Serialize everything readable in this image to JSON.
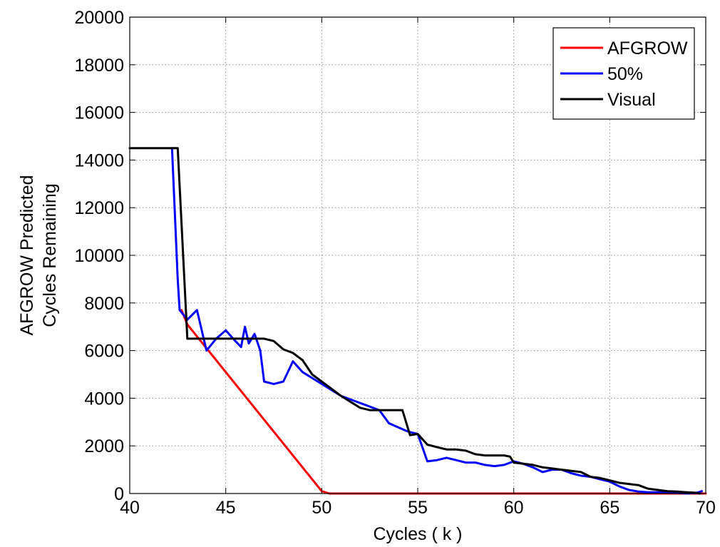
{
  "chart_data": {
    "type": "line",
    "title": "",
    "xlabel": "Cycles ( k )",
    "ylabel_lines": [
      "AFGROW Predicted",
      "Cycles Remaining"
    ],
    "xlim": [
      40,
      70
    ],
    "ylim": [
      0,
      20000
    ],
    "xticks": [
      40,
      45,
      50,
      55,
      60,
      65,
      70
    ],
    "yticks": [
      0,
      2000,
      4000,
      6000,
      8000,
      10000,
      12000,
      14000,
      16000,
      18000,
      20000
    ],
    "grid": true,
    "legend_position": "top-right",
    "series": [
      {
        "name": "AFGROW",
        "color": "#ff0000",
        "points": [
          [
            42.7,
            7700
          ],
          [
            43.0,
            7100
          ],
          [
            50.0,
            100
          ],
          [
            50.4,
            0
          ],
          [
            70.0,
            0
          ]
        ]
      },
      {
        "name": "50%",
        "color": "#0000ff",
        "points": [
          [
            42.2,
            14500
          ],
          [
            42.5,
            9000
          ],
          [
            42.6,
            7700
          ],
          [
            43.0,
            7300
          ],
          [
            43.5,
            7700
          ],
          [
            44.0,
            6000
          ],
          [
            44.5,
            6500
          ],
          [
            45.0,
            6850
          ],
          [
            45.5,
            6400
          ],
          [
            45.8,
            6150
          ],
          [
            46.0,
            7000
          ],
          [
            46.2,
            6300
          ],
          [
            46.5,
            6700
          ],
          [
            46.8,
            6000
          ],
          [
            47.0,
            4700
          ],
          [
            47.5,
            4600
          ],
          [
            48.0,
            4700
          ],
          [
            48.5,
            5550
          ],
          [
            49.0,
            5100
          ],
          [
            50.0,
            4600
          ],
          [
            51.0,
            4100
          ],
          [
            52.0,
            3800
          ],
          [
            53.0,
            3500
          ],
          [
            53.5,
            2950
          ],
          [
            54.5,
            2600
          ],
          [
            55.0,
            2500
          ],
          [
            55.5,
            1350
          ],
          [
            56.0,
            1400
          ],
          [
            56.5,
            1500
          ],
          [
            57.0,
            1400
          ],
          [
            57.5,
            1300
          ],
          [
            58.0,
            1300
          ],
          [
            58.5,
            1200
          ],
          [
            59.0,
            1150
          ],
          [
            59.5,
            1200
          ],
          [
            60.0,
            1350
          ],
          [
            60.5,
            1250
          ],
          [
            61.0,
            1100
          ],
          [
            61.5,
            900
          ],
          [
            62.0,
            1000
          ],
          [
            62.5,
            1000
          ],
          [
            63.0,
            850
          ],
          [
            63.5,
            750
          ],
          [
            64.0,
            700
          ],
          [
            64.5,
            600
          ],
          [
            65.0,
            500
          ],
          [
            65.5,
            300
          ],
          [
            66.0,
            150
          ],
          [
            66.5,
            80
          ],
          [
            67.0,
            50
          ],
          [
            67.5,
            50
          ],
          [
            68.0,
            30
          ],
          [
            68.5,
            20
          ],
          [
            69.0,
            0
          ],
          [
            69.5,
            20
          ],
          [
            69.8,
            100
          ]
        ]
      },
      {
        "name": "Visual",
        "color": "#000000",
        "points": [
          [
            40.0,
            14500
          ],
          [
            42.5,
            14500
          ],
          [
            43.0,
            6500
          ],
          [
            44.0,
            6500
          ],
          [
            47.0,
            6500
          ],
          [
            47.5,
            6400
          ],
          [
            48.0,
            6050
          ],
          [
            48.5,
            5900
          ],
          [
            49.0,
            5600
          ],
          [
            49.5,
            5000
          ],
          [
            50.0,
            4700
          ],
          [
            51.0,
            4100
          ],
          [
            52.0,
            3600
          ],
          [
            52.5,
            3500
          ],
          [
            54.2,
            3500
          ],
          [
            54.6,
            2450
          ],
          [
            55.0,
            2500
          ],
          [
            55.5,
            2050
          ],
          [
            56.0,
            1950
          ],
          [
            56.5,
            1850
          ],
          [
            57.0,
            1850
          ],
          [
            57.5,
            1800
          ],
          [
            58.0,
            1650
          ],
          [
            58.5,
            1600
          ],
          [
            59.0,
            1600
          ],
          [
            59.5,
            1600
          ],
          [
            59.8,
            1550
          ],
          [
            60.0,
            1300
          ],
          [
            60.5,
            1250
          ],
          [
            61.0,
            1200
          ],
          [
            61.5,
            1100
          ],
          [
            62.0,
            1050
          ],
          [
            62.5,
            1000
          ],
          [
            63.0,
            950
          ],
          [
            63.5,
            900
          ],
          [
            64.0,
            700
          ],
          [
            64.5,
            650
          ],
          [
            65.0,
            550
          ],
          [
            65.5,
            450
          ],
          [
            66.0,
            400
          ],
          [
            66.5,
            350
          ],
          [
            67.0,
            200
          ],
          [
            67.5,
            150
          ],
          [
            68.0,
            100
          ],
          [
            68.5,
            80
          ],
          [
            69.0,
            50
          ],
          [
            69.5,
            30
          ],
          [
            69.7,
            0
          ]
        ]
      }
    ]
  }
}
